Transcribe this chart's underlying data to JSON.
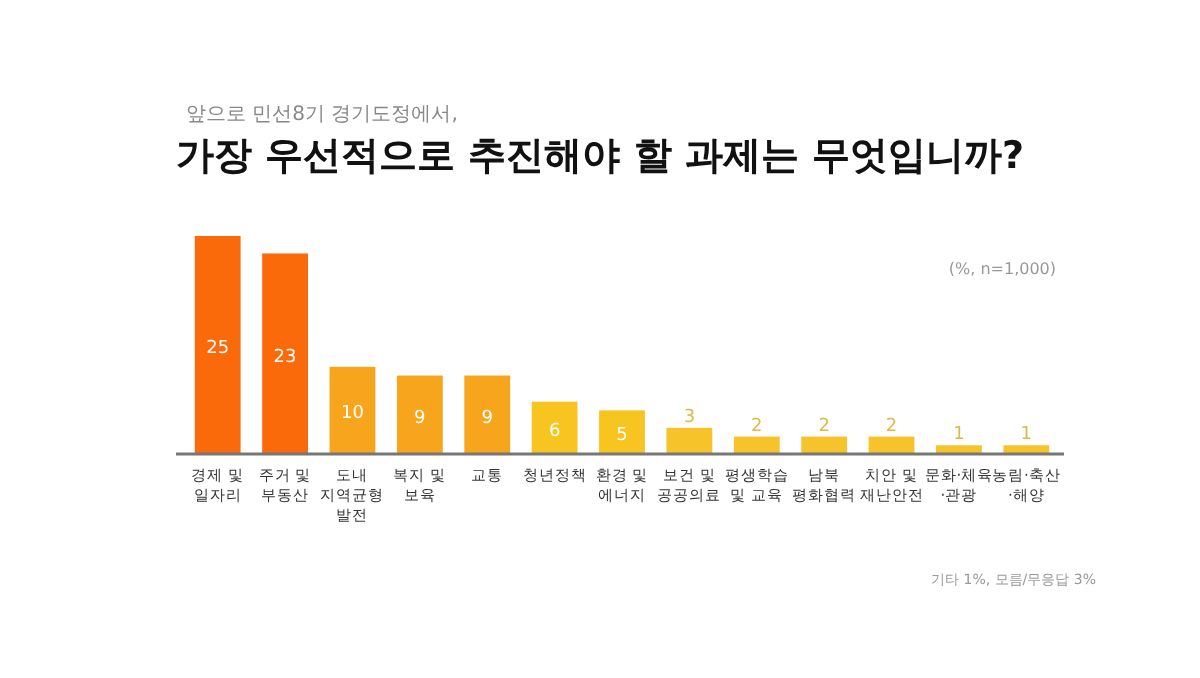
{
  "chart_data": {
    "type": "bar",
    "subtitle": "앞으로 민선8기 경기도정에서,",
    "title": "가장 우선적으로 추진해야 할 과제는 무엇입니까?",
    "annotations": [
      "(%, n=1,000)",
      "기타 1%, 모름/무응답 3%"
    ],
    "categories": [
      "경제 및\n일자리",
      "주거 및\n부동산",
      "도내\n지역균형\n발전",
      "복지 및\n보육",
      "교통",
      "청년정책",
      "환경 및\n에너지",
      "보건 및\n공공의료",
      "평생학습\n및 교육",
      "남북\n평화협력",
      "치안 및\n재난안전",
      "문화·체육\n·관광",
      "농림·축산\n·해양"
    ],
    "values": [
      25,
      23,
      10,
      9,
      9,
      6,
      5,
      3,
      2,
      2,
      2,
      1,
      1
    ],
    "colors": [
      "#fa6a0a",
      "#fa6a0a",
      "#f7a51c",
      "#f7a51c",
      "#f7a51c",
      "#f8c420",
      "#f8c420",
      "#f6c42a",
      "#f6c42a",
      "#f6c42a",
      "#f6c42a",
      "#f6c42a",
      "#f6c42a"
    ],
    "data_labels": true
  }
}
